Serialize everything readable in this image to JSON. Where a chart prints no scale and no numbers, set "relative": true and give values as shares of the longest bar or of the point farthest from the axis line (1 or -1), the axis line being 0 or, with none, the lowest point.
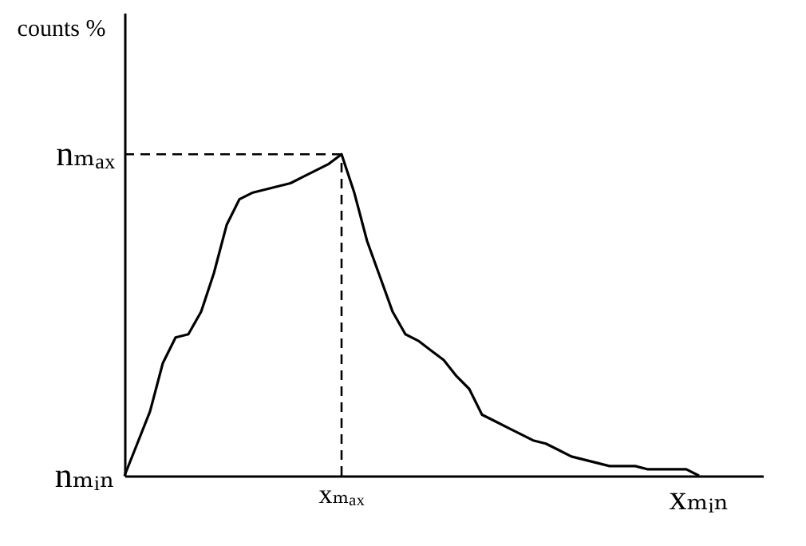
{
  "chart_data": {
    "type": "line",
    "ylabel": "counts %",
    "relative": true,
    "categories": [
      null,
      null,
      null,
      null,
      null,
      null,
      null,
      null,
      null,
      null,
      null,
      null,
      null,
      null,
      null,
      null,
      null,
      null,
      null,
      null,
      null,
      null,
      null,
      null,
      null,
      null,
      null,
      null,
      null,
      null,
      null,
      null,
      null,
      null,
      null,
      null,
      null,
      null,
      null,
      null,
      null,
      null,
      null,
      null,
      null,
      null,
      null,
      null,
      null,
      null,
      null
    ],
    "values": [
      0,
      0.1,
      0.2,
      0.35,
      0.43,
      0.44,
      0.51,
      0.63,
      0.78,
      0.86,
      0.88,
      0.89,
      0.9,
      0.91,
      0.93,
      0.95,
      0.97,
      1,
      0.88,
      0.73,
      0.62,
      0.51,
      0.44,
      0.42,
      0.39,
      0.36,
      0.31,
      0.27,
      0.19,
      0.17,
      0.15,
      0.13,
      0.11,
      0.1,
      0.08,
      0.06,
      0.05,
      0.04,
      0.03,
      0.03,
      0.03,
      0.02,
      0.02,
      0.02,
      0.02,
      0,
      null,
      null,
      null,
      null,
      null
    ],
    "color": "#000000",
    "annotations": [
      "nₘₐₓ",
      "nₘᵢₙ",
      "xₘₐₓ",
      "xₘᵢₙ"
    ],
    "ref_lines": [
      {
        "axis": "y",
        "value": 1,
        "line_style": "dashed"
      }
    ],
    "grid": false,
    "marker": "none",
    "line_style": "solid"
  }
}
